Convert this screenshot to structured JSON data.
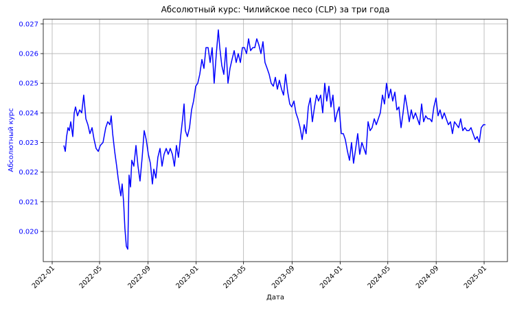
{
  "chart_data": {
    "type": "line",
    "title": "Абсолютный курс: Чилийское песо (CLP) за три года",
    "x_label": "Дата",
    "y_label": "Абсолютный курс",
    "color": "#0000ff",
    "label_color": "#0000ff",
    "grid": true,
    "xlim": [
      2021.938,
      2025.162
    ],
    "xticks": [
      {
        "value": 2022,
        "label": "2022-01"
      },
      {
        "value": 2022.329,
        "label": "2022-05"
      },
      {
        "value": 2022.666,
        "label": "2022-09"
      },
      {
        "value": 2023,
        "label": "2023-01"
      },
      {
        "value": 2023.329,
        "label": "2023-05"
      },
      {
        "value": 2023.666,
        "label": "2023-09"
      },
      {
        "value": 2024,
        "label": "2024-01"
      },
      {
        "value": 2024.331,
        "label": "2024-05"
      },
      {
        "value": 2024.667,
        "label": "2024-09"
      },
      {
        "value": 2025,
        "label": "2025-01"
      }
    ],
    "ylim": [
      0.01898,
      0.02716
    ],
    "yticks": [
      {
        "value": 0.02,
        "label": "0.020"
      },
      0.021,
      0.022,
      0.023,
      0.024,
      0.025,
      0.026,
      0.027
    ],
    "x": [
      2022.081,
      2022.091,
      2022.1,
      2022.11,
      2022.119,
      2022.129,
      2022.143,
      2022.153,
      2022.162,
      2022.176,
      2022.191,
      2022.205,
      2022.219,
      2022.234,
      2022.248,
      2022.262,
      2022.277,
      2022.291,
      2022.305,
      2022.32,
      2022.334,
      2022.353,
      2022.372,
      2022.386,
      2022.401,
      2022.41,
      2022.42,
      2022.434,
      2022.448,
      2022.458,
      2022.467,
      2022.477,
      2022.486,
      2022.496,
      2022.505,
      2022.515,
      2022.525,
      2022.534,
      2022.544,
      2022.553,
      2022.567,
      2022.582,
      2022.596,
      2022.61,
      2022.625,
      2022.639,
      2022.653,
      2022.668,
      2022.682,
      2022.696,
      2022.706,
      2022.72,
      2022.734,
      2022.749,
      2022.763,
      2022.777,
      2022.792,
      2022.806,
      2022.82,
      2022.835,
      2022.849,
      2022.863,
      2022.877,
      2022.892,
      2022.906,
      2022.916,
      2022.925,
      2022.939,
      2022.954,
      2022.968,
      2022.982,
      2022.997,
      2023.011,
      2023.025,
      2023.04,
      2023.054,
      2023.068,
      2023.083,
      2023.097,
      2023.111,
      2023.125,
      2023.14,
      2023.154,
      2023.164,
      2023.178,
      2023.192,
      2023.207,
      2023.221,
      2023.235,
      2023.249,
      2023.264,
      2023.278,
      2023.292,
      2023.307,
      2023.321,
      2023.335,
      2023.35,
      2023.364,
      2023.378,
      2023.393,
      2023.407,
      2023.421,
      2023.435,
      2023.45,
      2023.464,
      2023.478,
      2023.493,
      2023.507,
      2023.521,
      2023.536,
      2023.55,
      2023.564,
      2023.578,
      2023.593,
      2023.607,
      2023.621,
      2023.636,
      2023.65,
      2023.664,
      2023.679,
      2023.693,
      2023.707,
      2023.722,
      2023.736,
      2023.75,
      2023.764,
      2023.779,
      2023.793,
      2023.807,
      2023.822,
      2023.836,
      2023.85,
      2023.865,
      2023.879,
      2023.893,
      2023.907,
      2023.922,
      2023.936,
      2023.95,
      2023.965,
      2023.979,
      2023.993,
      2024.008,
      2024.022,
      2024.036,
      2024.051,
      2024.065,
      2024.079,
      2024.093,
      2024.108,
      2024.122,
      2024.136,
      2024.151,
      2024.165,
      2024.179,
      2024.194,
      2024.208,
      2024.222,
      2024.237,
      2024.251,
      2024.265,
      2024.279,
      2024.294,
      2024.308,
      2024.322,
      2024.337,
      2024.351,
      2024.365,
      2024.38,
      2024.394,
      2024.408,
      2024.423,
      2024.437,
      2024.451,
      2024.465,
      2024.48,
      2024.494,
      2024.508,
      2024.523,
      2024.537,
      2024.551,
      2024.566,
      2024.58,
      2024.594,
      2024.609,
      2024.623,
      2024.637,
      2024.651,
      2024.666,
      2024.68,
      2024.694,
      2024.709,
      2024.723,
      2024.737,
      2024.752,
      2024.766,
      2024.78,
      2024.794,
      2024.809,
      2024.823,
      2024.837,
      2024.852,
      2024.866,
      2024.88,
      2024.895,
      2024.909,
      2024.923,
      2024.938,
      2024.952,
      2024.966,
      2024.98,
      2024.995,
      2025.009
    ],
    "values": [
      0.0229,
      0.0227,
      0.0232,
      0.0235,
      0.0234,
      0.0237,
      0.0232,
      0.024,
      0.0242,
      0.0239,
      0.0241,
      0.024,
      0.0246,
      0.0238,
      0.0236,
      0.0233,
      0.0235,
      0.0231,
      0.0228,
      0.0227,
      0.0229,
      0.023,
      0.0235,
      0.0237,
      0.0236,
      0.0239,
      0.0233,
      0.0227,
      0.0222,
      0.0218,
      0.0215,
      0.0212,
      0.0216,
      0.021,
      0.0201,
      0.0195,
      0.0194,
      0.0219,
      0.0215,
      0.0224,
      0.0222,
      0.0229,
      0.0222,
      0.0217,
      0.0225,
      0.0234,
      0.0231,
      0.0226,
      0.0223,
      0.0216,
      0.0221,
      0.0218,
      0.0225,
      0.0228,
      0.0222,
      0.0226,
      0.0228,
      0.0226,
      0.0228,
      0.0226,
      0.0222,
      0.0229,
      0.0225,
      0.0232,
      0.0238,
      0.0243,
      0.0234,
      0.0232,
      0.0235,
      0.0241,
      0.0244,
      0.0249,
      0.025,
      0.0253,
      0.0258,
      0.0255,
      0.0262,
      0.0262,
      0.0257,
      0.0262,
      0.025,
      0.026,
      0.0268,
      0.0262,
      0.0256,
      0.0253,
      0.0262,
      0.025,
      0.0255,
      0.0258,
      0.0261,
      0.0257,
      0.026,
      0.0257,
      0.0262,
      0.0262,
      0.026,
      0.0265,
      0.0261,
      0.0262,
      0.0262,
      0.0265,
      0.0263,
      0.026,
      0.0264,
      0.0257,
      0.0255,
      0.0253,
      0.025,
      0.0249,
      0.0252,
      0.0248,
      0.0251,
      0.0248,
      0.0246,
      0.0253,
      0.0247,
      0.0243,
      0.0242,
      0.0244,
      0.024,
      0.0238,
      0.0235,
      0.0231,
      0.0236,
      0.0233,
      0.0242,
      0.0245,
      0.0237,
      0.0242,
      0.0246,
      0.0244,
      0.0246,
      0.024,
      0.025,
      0.0244,
      0.0249,
      0.0242,
      0.0246,
      0.0237,
      0.024,
      0.0242,
      0.0233,
      0.0233,
      0.0231,
      0.0227,
      0.0224,
      0.023,
      0.0223,
      0.0228,
      0.0233,
      0.0226,
      0.023,
      0.0228,
      0.0226,
      0.0237,
      0.0234,
      0.0235,
      0.0238,
      0.0236,
      0.0238,
      0.024,
      0.0246,
      0.0243,
      0.025,
      0.0245,
      0.0248,
      0.0244,
      0.0247,
      0.0241,
      0.0242,
      0.0235,
      0.024,
      0.0246,
      0.0242,
      0.0237,
      0.0241,
      0.0238,
      0.024,
      0.0238,
      0.0236,
      0.0243,
      0.0237,
      0.0239,
      0.0238,
      0.0238,
      0.0237,
      0.0242,
      0.0245,
      0.0239,
      0.0241,
      0.0238,
      0.024,
      0.0238,
      0.0236,
      0.0237,
      0.0233,
      0.0237,
      0.0236,
      0.0235,
      0.0238,
      0.0234,
      0.0235,
      0.0234,
      0.0234,
      0.0235,
      0.0233,
      0.0231,
      0.0232,
      0.023,
      0.0235,
      0.0236,
      0.0236
    ]
  }
}
